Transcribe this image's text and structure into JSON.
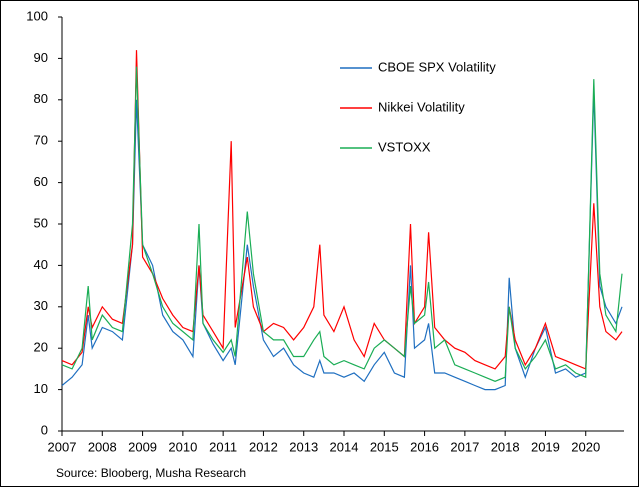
{
  "chart_data": {
    "type": "line",
    "source": "Source: Blooberg, Musha Research",
    "x": [
      2007,
      2007.25,
      2007.5,
      2007.65,
      2007.75,
      2008,
      2008.25,
      2008.5,
      2008.75,
      2008.85,
      2009,
      2009.25,
      2009.5,
      2009.75,
      2010,
      2010.25,
      2010.4,
      2010.5,
      2010.75,
      2011,
      2011.2,
      2011.3,
      2011.6,
      2011.75,
      2012,
      2012.25,
      2012.5,
      2012.75,
      2013,
      2013.25,
      2013.4,
      2013.5,
      2013.75,
      2014,
      2014.25,
      2014.5,
      2014.75,
      2015,
      2015.25,
      2015.5,
      2015.65,
      2015.75,
      2016,
      2016.1,
      2016.25,
      2016.5,
      2016.75,
      2017,
      2017.25,
      2017.5,
      2017.75,
      2018,
      2018.1,
      2018.25,
      2018.5,
      2018.75,
      2019,
      2019.25,
      2019.5,
      2019.75,
      2020,
      2020.2,
      2020.35,
      2020.5,
      2020.75,
      2020.9
    ],
    "series": [
      {
        "name": "CBOE SPX Volatility",
        "color": "#1f6fc0",
        "values": [
          11,
          13,
          16,
          28,
          20,
          25,
          24,
          22,
          45,
          80,
          45,
          40,
          28,
          24,
          22,
          18,
          40,
          26,
          21,
          17,
          20,
          16,
          45,
          35,
          22,
          18,
          20,
          16,
          14,
          13,
          17,
          14,
          14,
          13,
          14,
          12,
          16,
          19,
          14,
          13,
          40,
          20,
          22,
          26,
          14,
          14,
          13,
          12,
          11,
          10,
          10,
          11,
          37,
          20,
          13,
          20,
          25,
          14,
          15,
          13,
          14,
          82,
          35,
          30,
          26,
          30
        ]
      },
      {
        "name": "Nikkei Volatility",
        "color": "#ff0000",
        "values": [
          17,
          16,
          19,
          30,
          25,
          30,
          27,
          26,
          45,
          92,
          42,
          38,
          32,
          28,
          25,
          24,
          40,
          28,
          24,
          20,
          70,
          25,
          42,
          30,
          24,
          26,
          25,
          22,
          25,
          30,
          45,
          28,
          24,
          30,
          22,
          18,
          26,
          22,
          20,
          18,
          50,
          26,
          30,
          48,
          25,
          22,
          20,
          19,
          17,
          16,
          15,
          18,
          30,
          22,
          16,
          20,
          26,
          18,
          17,
          16,
          15,
          55,
          30,
          24,
          22,
          24
        ]
      },
      {
        "name": "VSTOXX",
        "color": "#1aad55",
        "values": [
          16,
          15,
          20,
          35,
          22,
          28,
          25,
          24,
          50,
          88,
          45,
          38,
          30,
          26,
          24,
          22,
          50,
          26,
          22,
          19,
          22,
          18,
          53,
          38,
          24,
          22,
          22,
          18,
          18,
          22,
          24,
          18,
          16,
          17,
          16,
          15,
          20,
          22,
          20,
          18,
          35,
          26,
          28,
          36,
          20,
          22,
          16,
          15,
          14,
          13,
          12,
          13,
          30,
          20,
          15,
          18,
          22,
          15,
          16,
          14,
          13,
          85,
          38,
          28,
          24,
          38
        ]
      }
    ],
    "xlim": [
      2007,
      2020.95
    ],
    "xticks": [
      2007,
      2008,
      2009,
      2010,
      2011,
      2012,
      2013,
      2014,
      2015,
      2016,
      2017,
      2018,
      2019,
      2020
    ],
    "ylim": [
      0,
      100
    ],
    "yticks": [
      0,
      10,
      20,
      30,
      40,
      50,
      60,
      70,
      80,
      90,
      100
    ]
  }
}
